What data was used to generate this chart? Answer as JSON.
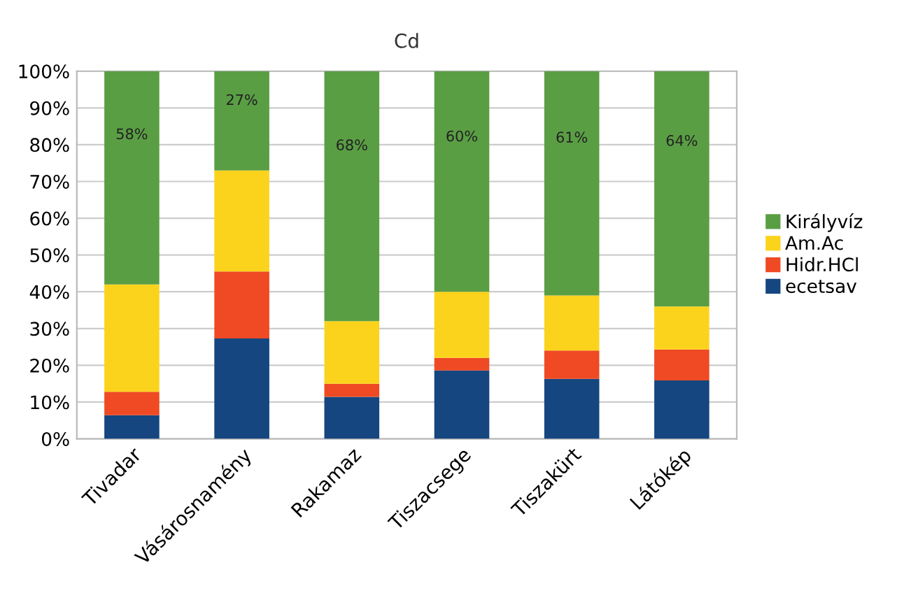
{
  "chart_data": {
    "type": "bar",
    "stacked": true,
    "title": "Cd",
    "categories": [
      "Tivadar",
      "Vásárosnamény",
      "Rakamaz",
      "Tiszacsege",
      "Tiszakürt",
      "Látókép"
    ],
    "series": [
      {
        "name": "ecetsav",
        "color": "#15467f",
        "values": [
          6.4,
          27.3,
          11.4,
          18.6,
          16.3,
          15.9
        ]
      },
      {
        "name": "Hidr.HCl",
        "color": "#ef4a23",
        "values": [
          6.4,
          18.2,
          3.6,
          3.4,
          7.7,
          8.4
        ]
      },
      {
        "name": "Am.Ac",
        "color": "#fcd31c",
        "values": [
          29.2,
          27.5,
          17.0,
          18.0,
          15.0,
          11.7
        ]
      },
      {
        "name": "Királyvíz",
        "color": "#5a9e44",
        "values": [
          58,
          27,
          68,
          60,
          61,
          64
        ],
        "value_labels": [
          "58%",
          "27%",
          "68%",
          "60%",
          "61%",
          "64%"
        ]
      }
    ],
    "ylim": [
      0,
      100
    ],
    "yticks": [
      {
        "value": 0,
        "label": "0%"
      },
      {
        "value": 10,
        "label": "10%"
      },
      {
        "value": 20,
        "label": "20%"
      },
      {
        "value": 30,
        "label": "30%"
      },
      {
        "value": 40,
        "label": "40%"
      },
      {
        "value": 50,
        "label": "50%"
      },
      {
        "value": 60,
        "label": "60%"
      },
      {
        "value": 70,
        "label": "70%"
      },
      {
        "value": 80,
        "label": "80%"
      },
      {
        "value": 90,
        "label": "90%"
      },
      {
        "value": 100,
        "label": "100%"
      }
    ],
    "grid": "y",
    "legend": "right"
  }
}
